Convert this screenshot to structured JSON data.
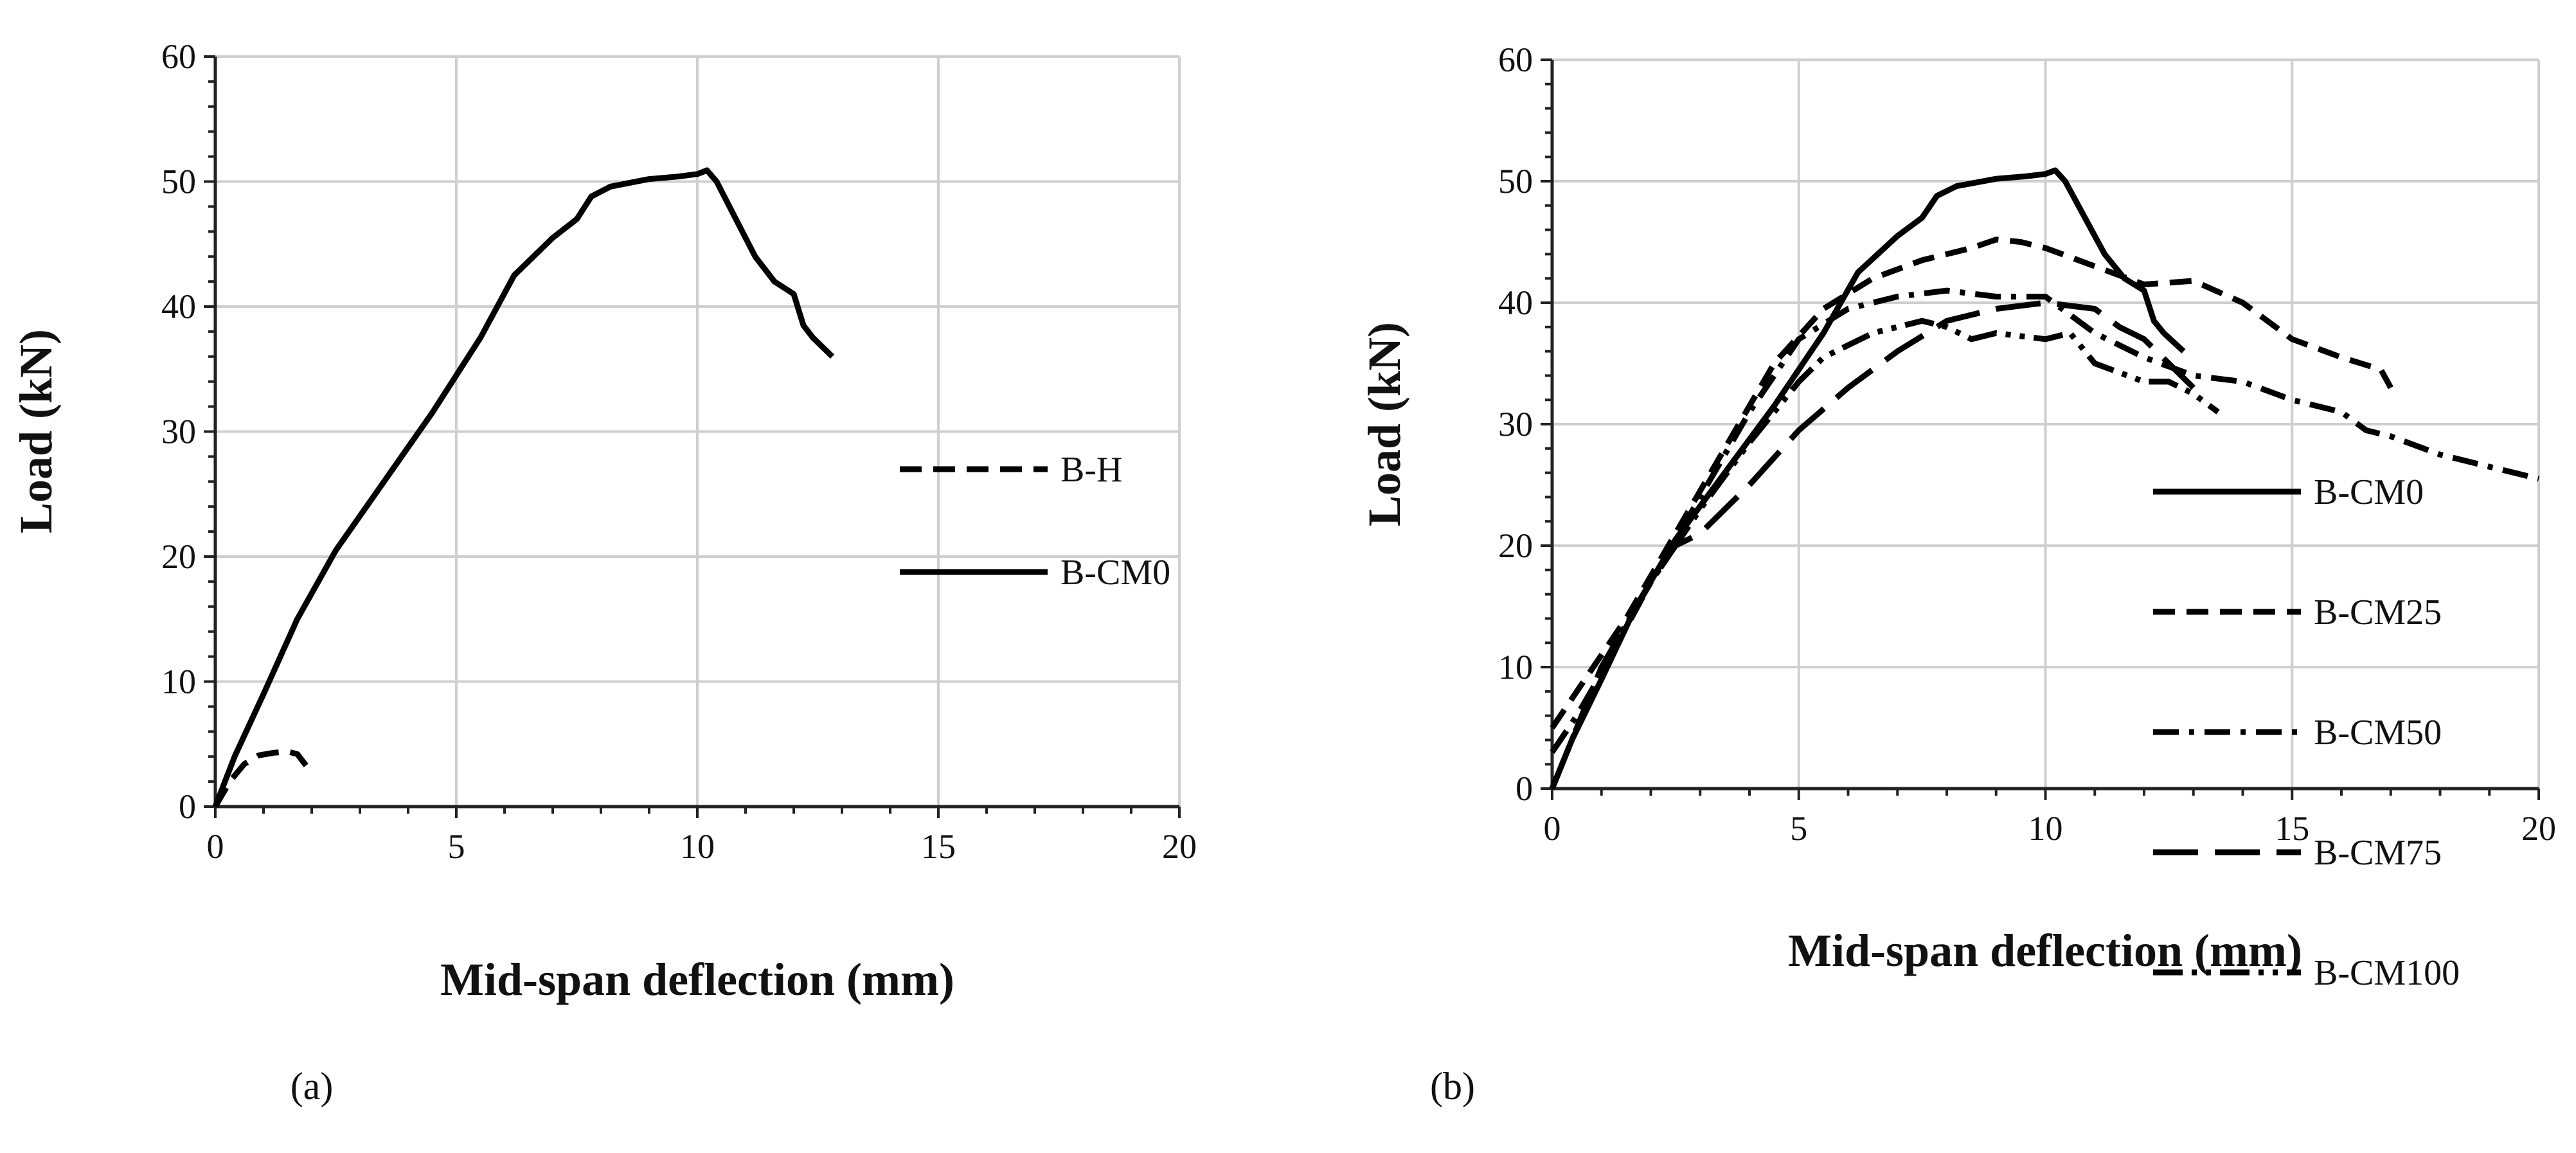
{
  "chart_data": [
    {
      "type": "line",
      "panel_label": "(a)",
      "xlabel": "Mid-span deflection (mm)",
      "ylabel": "Load (kN)",
      "xlim": [
        0,
        20
      ],
      "ylim": [
        0,
        60
      ],
      "xticks": [
        0,
        5,
        10,
        15,
        20
      ],
      "yticks": [
        0,
        10,
        20,
        30,
        40,
        50,
        60
      ],
      "grid": true,
      "legend_position": "right",
      "series": [
        {
          "name": "B-H",
          "dash": "dash",
          "x": [
            0,
            0.3,
            0.6,
            0.9,
            1.2,
            1.5,
            1.7,
            1.9
          ],
          "y": [
            0,
            2.0,
            3.4,
            4.1,
            4.3,
            4.4,
            4.2,
            3.2
          ]
        },
        {
          "name": "B-CM0",
          "dash": "solid",
          "x": [
            0,
            0.4,
            1.0,
            1.7,
            2.5,
            3.5,
            4.5,
            5.5,
            6.2,
            7.0,
            7.5,
            7.8,
            8.2,
            9.0,
            9.6,
            10.0,
            10.2,
            10.4,
            10.8,
            11.2,
            11.6,
            12.0,
            12.2,
            12.4,
            12.8
          ],
          "y": [
            0,
            4.0,
            9.0,
            15.0,
            20.5,
            26.0,
            31.5,
            37.5,
            42.5,
            45.5,
            47.0,
            48.8,
            49.6,
            50.2,
            50.4,
            50.6,
            50.9,
            50.0,
            47.0,
            44.0,
            42.0,
            41.0,
            38.5,
            37.5,
            36.0
          ]
        }
      ]
    },
    {
      "type": "line",
      "panel_label": "(b)",
      "xlabel": "Mid-span deflection (mm)",
      "ylabel": "Load (kN)",
      "xlim": [
        0,
        20
      ],
      "ylim": [
        0,
        60
      ],
      "xticks": [
        0,
        5,
        10,
        15,
        20
      ],
      "yticks": [
        0,
        10,
        20,
        30,
        40,
        50,
        60
      ],
      "grid": true,
      "legend_position": "right",
      "series": [
        {
          "name": "B-CM0",
          "dash": "solid",
          "x": [
            0,
            0.4,
            1.0,
            1.7,
            2.5,
            3.5,
            4.5,
            5.5,
            6.2,
            7.0,
            7.5,
            7.8,
            8.2,
            9.0,
            9.6,
            10.0,
            10.2,
            10.4,
            10.8,
            11.2,
            11.6,
            12.0,
            12.2,
            12.4,
            12.8
          ],
          "y": [
            0,
            4.0,
            9.0,
            15.0,
            20.5,
            26.0,
            31.5,
            37.5,
            42.5,
            45.5,
            47.0,
            48.8,
            49.6,
            50.2,
            50.4,
            50.6,
            50.9,
            50.0,
            47.0,
            44.0,
            42.0,
            41.0,
            38.5,
            37.5,
            36.0
          ]
        },
        {
          "name": "B-CM25",
          "dash": "dash",
          "x": [
            0,
            0.5,
            1.5,
            2.5,
            3.5,
            4.5,
            5.5,
            6.5,
            7.5,
            8.5,
            9.0,
            9.5,
            10.0,
            11.0,
            12.0,
            13.0,
            14.0,
            15.0,
            16.0,
            16.8,
            17.0
          ],
          "y": [
            5.0,
            8.0,
            14.0,
            21.0,
            28.0,
            35.0,
            39.5,
            42.0,
            43.5,
            44.5,
            45.2,
            45.0,
            44.5,
            43.0,
            41.5,
            41.8,
            40.0,
            37.0,
            35.5,
            34.5,
            33.0
          ]
        },
        {
          "name": "B-CM50",
          "dash": "dashdot",
          "x": [
            0,
            0.5,
            1.0,
            2.0,
            3.0,
            4.0,
            5.0,
            6.0,
            7.0,
            8.0,
            9.0,
            10.0,
            11.0,
            12.0,
            13.0,
            14.0,
            15.0,
            16.0,
            16.5,
            17.0,
            18.0,
            19.0,
            20.0
          ],
          "y": [
            3.0,
            6.0,
            9.5,
            17.0,
            24.0,
            31.0,
            37.0,
            39.5,
            40.5,
            41.0,
            40.5,
            40.5,
            37.5,
            35.5,
            34.0,
            33.5,
            32.0,
            31.0,
            29.5,
            29.0,
            27.5,
            26.5,
            25.5
          ]
        },
        {
          "name": "B-CM75",
          "dash": "longdash",
          "x": [
            0,
            0.5,
            1.0,
            2.0,
            2.5,
            3.0,
            4.0,
            5.0,
            6.0,
            7.0,
            8.0,
            9.0,
            10.0,
            11.0,
            11.5,
            12.0,
            12.5,
            13.0
          ],
          "y": [
            0,
            5.0,
            10.0,
            17.0,
            20.0,
            21.0,
            25.0,
            29.5,
            33.0,
            36.0,
            38.5,
            39.5,
            40.0,
            39.5,
            38.0,
            37.0,
            35.0,
            33.0
          ]
        },
        {
          "name": "B-CM100",
          "dash": "dashdotdot",
          "x": [
            0,
            0.5,
            1.0,
            2.0,
            3.0,
            4.0,
            5.0,
            5.5,
            6.5,
            7.5,
            8.0,
            8.5,
            9.0,
            10.0,
            10.5,
            11.0,
            12.0,
            12.5,
            13.0,
            13.5
          ],
          "y": [
            0,
            5.0,
            10.0,
            17.0,
            23.0,
            28.5,
            33.5,
            35.5,
            37.5,
            38.5,
            38.0,
            37.0,
            37.5,
            37.0,
            37.5,
            35.0,
            33.5,
            33.5,
            32.5,
            31.0
          ]
        }
      ]
    }
  ]
}
